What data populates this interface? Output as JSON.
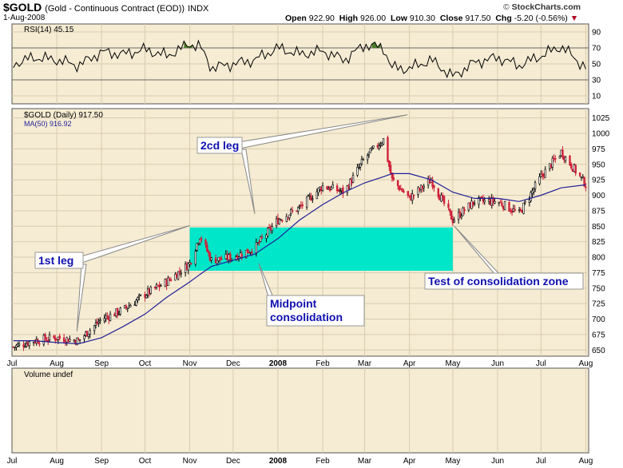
{
  "header": {
    "symbol": "$GOLD",
    "name": "(Gold - Continuous Contract (EOD))",
    "exchange": "INDX",
    "date": "1-Aug-2008",
    "open_label": "Open",
    "open": "922.90",
    "high_label": "High",
    "high": "926.00",
    "low_label": "Low",
    "low": "910.30",
    "close_label": "Close",
    "close": "917.50",
    "chg_label": "Chg",
    "chg": "-5.20 (-0.56%)",
    "watermark_prefix": "© ",
    "watermark": "StockCharts.com"
  },
  "chart_data": [
    {
      "type": "line",
      "panel": "rsi",
      "legend": "RSI(14) 45.15",
      "y_ticks": [
        "90",
        "70",
        "50",
        "30",
        "10"
      ],
      "ylim": [
        0,
        100
      ],
      "guide_lines": [
        70,
        30
      ],
      "x": [
        "2007-07-02",
        "2007-07-16",
        "2007-08-01",
        "2007-08-16",
        "2007-09-01",
        "2007-09-16",
        "2007-10-01",
        "2007-10-16",
        "2007-11-01",
        "2007-11-08",
        "2007-11-16",
        "2007-12-01",
        "2007-12-16",
        "2008-01-01",
        "2008-01-16",
        "2008-02-01",
        "2008-02-16",
        "2008-03-01",
        "2008-03-14",
        "2008-03-20",
        "2008-04-01",
        "2008-04-16",
        "2008-05-01",
        "2008-05-16",
        "2008-06-01",
        "2008-06-16",
        "2008-07-01",
        "2008-07-15",
        "2008-08-01"
      ],
      "values": [
        50,
        58,
        55,
        48,
        65,
        62,
        68,
        60,
        75,
        72,
        45,
        50,
        55,
        70,
        62,
        66,
        55,
        74,
        70,
        45,
        44,
        55,
        34,
        52,
        58,
        48,
        60,
        72,
        45
      ]
    },
    {
      "type": "candlestick",
      "panel": "price",
      "legend": [
        "$GOLD (Daily) 917.50",
        "MA(50) 916.92"
      ],
      "y_ticks": [
        "1025",
        "1000",
        "975",
        "950",
        "925",
        "900",
        "875",
        "850",
        "825",
        "800",
        "775",
        "750",
        "725",
        "700",
        "675",
        "650"
      ],
      "ylim": [
        640,
        1040
      ],
      "x_ticks": [
        "Jul",
        "Aug",
        "Sep",
        "Oct",
        "Nov",
        "Dec",
        "2008",
        "Feb",
        "Mar",
        "Apr",
        "May",
        "Jun",
        "Jul",
        "Aug"
      ],
      "x": [
        "2007-07-02",
        "2007-07-16",
        "2007-08-01",
        "2007-08-16",
        "2007-09-01",
        "2007-09-16",
        "2007-10-01",
        "2007-10-16",
        "2007-11-01",
        "2007-11-08",
        "2007-11-16",
        "2007-12-01",
        "2007-12-16",
        "2008-01-01",
        "2008-01-16",
        "2008-02-01",
        "2008-02-16",
        "2008-03-01",
        "2008-03-14",
        "2008-03-20",
        "2008-04-01",
        "2008-04-16",
        "2008-05-01",
        "2008-05-16",
        "2008-06-01",
        "2008-06-16",
        "2008-07-01",
        "2008-07-15",
        "2008-08-01"
      ],
      "close": [
        655,
        665,
        670,
        665,
        700,
        715,
        740,
        760,
        790,
        835,
        795,
        800,
        815,
        860,
        880,
        915,
        905,
        960,
        990,
        925,
        895,
        925,
        860,
        890,
        890,
        870,
        930,
        970,
        917.5
      ],
      "ma50": [
        665,
        665,
        662,
        660,
        670,
        688,
        708,
        735,
        760,
        772,
        785,
        795,
        805,
        830,
        860,
        885,
        905,
        920,
        930,
        935,
        935,
        925,
        905,
        895,
        895,
        890,
        900,
        912,
        916.92
      ],
      "zone": {
        "y_low": 778,
        "y_high": 848,
        "x_start": "2007-11-01",
        "x_end": "2008-05-01"
      },
      "annotations": [
        {
          "text": "1st leg",
          "target": "2007-08-16"
        },
        {
          "text": "2cd leg",
          "target": "2007-12-16"
        },
        {
          "text": "Midpoint consolidation",
          "target": "2007-12-16"
        },
        {
          "text": "Test of consolidation zone",
          "target": "2008-05-01"
        }
      ]
    },
    {
      "type": "bar",
      "panel": "volume",
      "legend": "Volume undef",
      "x_ticks": [
        "Jul",
        "Aug",
        "Sep",
        "Oct",
        "Nov",
        "Dec",
        "2008",
        "Feb",
        "Mar",
        "Apr",
        "May",
        "Jun",
        "Jul",
        "Aug"
      ],
      "values": []
    }
  ],
  "colors": {
    "panel_bg": "#f6ecd3",
    "grid": "#d8ccb0",
    "candle_up": "#000000",
    "candle_down": "#d0203a",
    "ma_line": "#1f1f99",
    "zone": "#00e6c8",
    "annotation_text": "#1010b0",
    "rsi_fill": "#4e7e2e",
    "axis_text": "#000000",
    "chg_down": "#b00020"
  }
}
